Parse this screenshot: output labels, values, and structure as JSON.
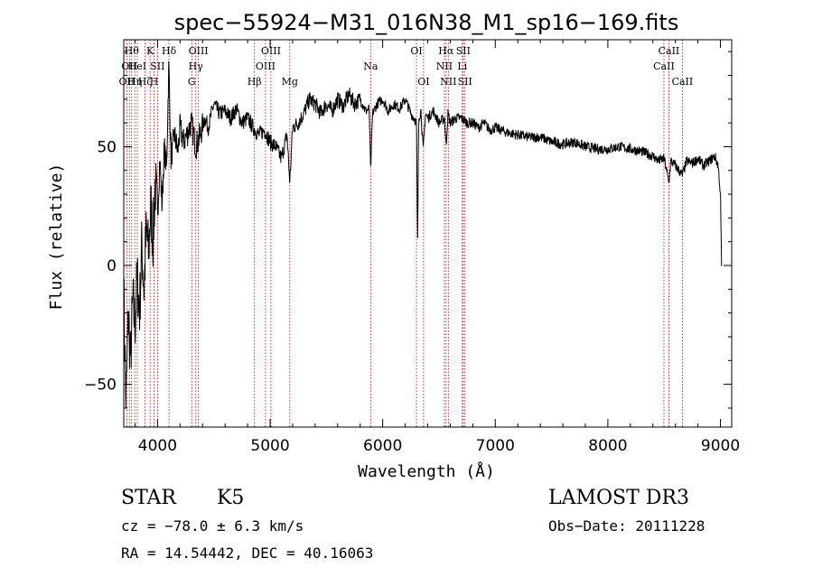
{
  "chart_data": {
    "type": "line",
    "title": "spec−55924−M31_016N38_M1_sp16−169.fits",
    "xlabel": "Wavelength (Å)",
    "ylabel": "Flux (relative)",
    "xlim": [
      3700,
      9100
    ],
    "ylim": [
      -68,
      95
    ],
    "x_ticks": [
      {
        "value": 4000,
        "label": "4000"
      },
      {
        "value": 5000,
        "label": "5000"
      },
      {
        "value": 6000,
        "label": "6000"
      },
      {
        "value": 7000,
        "label": "7000"
      },
      {
        "value": 8000,
        "label": "8000"
      },
      {
        "value": 9000,
        "label": "9000"
      }
    ],
    "y_ticks": [
      {
        "value": -50,
        "label": "−50"
      },
      {
        "value": 0,
        "label": "0"
      },
      {
        "value": 50,
        "label": "50"
      }
    ],
    "series": [
      {
        "name": "flux",
        "x": [
          3700,
          3720,
          3740,
          3760,
          3780,
          3800,
          3820,
          3840,
          3860,
          3880,
          3900,
          3920,
          3940,
          3960,
          3980,
          4000,
          4020,
          4040,
          4060,
          4080,
          4100,
          4120,
          4150,
          4180,
          4200,
          4230,
          4260,
          4300,
          4340,
          4380,
          4420,
          4450,
          4500,
          4550,
          4600,
          4650,
          4700,
          4750,
          4800,
          4850,
          4900,
          4950,
          5000,
          5050,
          5100,
          5150,
          5175,
          5200,
          5250,
          5300,
          5350,
          5400,
          5450,
          5500,
          5550,
          5600,
          5650,
          5700,
          5750,
          5800,
          5850,
          5880,
          5893,
          5910,
          5950,
          6000,
          6050,
          6100,
          6150,
          6200,
          6250,
          6280,
          6300,
          6310,
          6320,
          6340,
          6360,
          6380,
          6400,
          6450,
          6500,
          6550,
          6563,
          6580,
          6600,
          6650,
          6700,
          6750,
          6800,
          6850,
          6900,
          6950,
          7000,
          7100,
          7200,
          7300,
          7400,
          7500,
          7600,
          7700,
          7800,
          7900,
          8000,
          8100,
          8200,
          8300,
          8400,
          8450,
          8500,
          8542,
          8560,
          8600,
          8662,
          8700,
          8750,
          8800,
          8850,
          8900,
          8950,
          8980,
          9000,
          9010
        ],
        "values": [
          -10,
          -60,
          -20,
          -40,
          -15,
          -25,
          -5,
          -20,
          8,
          -10,
          15,
          5,
          25,
          10,
          35,
          20,
          45,
          25,
          50,
          40,
          85,
          45,
          55,
          48,
          58,
          52,
          55,
          60,
          50,
          55,
          62,
          58,
          68,
          64,
          65,
          62,
          66,
          60,
          62,
          58,
          55,
          57,
          52,
          50,
          45,
          55,
          35,
          58,
          60,
          64,
          70,
          68,
          64,
          68,
          65,
          70,
          67,
          72,
          68,
          70,
          65,
          66,
          40,
          64,
          68,
          70,
          65,
          68,
          66,
          70,
          64,
          62,
          60,
          10,
          62,
          65,
          48,
          64,
          62,
          65,
          60,
          62,
          50,
          64,
          60,
          62,
          62,
          60,
          60,
          58,
          60,
          57,
          58,
          56,
          55,
          54,
          54,
          52,
          51,
          52,
          50,
          49,
          49,
          50,
          49,
          48,
          46,
          44,
          45,
          35,
          44,
          42,
          38,
          44,
          43,
          45,
          42,
          44,
          46,
          42,
          30,
          0
        ]
      }
    ],
    "line_marks": [
      {
        "x": 3727,
        "label": "OII",
        "row": 2
      },
      {
        "x": 3750,
        "label": "OII",
        "row": 1
      },
      {
        "x": 3770,
        "label": "Hθ",
        "row": 0
      },
      {
        "x": 3798,
        "label": "Hη",
        "row": 2
      },
      {
        "x": 3820,
        "label": "HeI",
        "row": 1
      },
      {
        "x": 3889,
        "label": "Hζ",
        "row": 2
      },
      {
        "x": 3934,
        "label": "K",
        "row": 0
      },
      {
        "x": 3969,
        "label": "H",
        "row": 2
      },
      {
        "x": 4000,
        "label": "SII",
        "row": 1
      },
      {
        "x": 4102,
        "label": "Hδ",
        "row": 0
      },
      {
        "x": 4304,
        "label": "G",
        "row": 2
      },
      {
        "x": 4340,
        "label": "Hγ",
        "row": 1
      },
      {
        "x": 4363,
        "label": "OIII",
        "row": 0
      },
      {
        "x": 4861,
        "label": "Hβ",
        "row": 2
      },
      {
        "x": 4959,
        "label": "OIII",
        "row": 1
      },
      {
        "x": 5007,
        "label": "OIII",
        "row": 0
      },
      {
        "x": 5175,
        "label": "Mg",
        "row": 2
      },
      {
        "x": 5893,
        "label": "Na",
        "row": 1
      },
      {
        "x": 6300,
        "label": "OI",
        "row": 0
      },
      {
        "x": 6363,
        "label": "OI",
        "row": 2
      },
      {
        "x": 6548,
        "label": "NII",
        "row": 1
      },
      {
        "x": 6563,
        "label": "Hα",
        "row": 0
      },
      {
        "x": 6583,
        "label": "NII",
        "row": 2
      },
      {
        "x": 6707,
        "label": "Li",
        "row": 1
      },
      {
        "x": 6716,
        "label": "SII",
        "row": 0
      },
      {
        "x": 6731,
        "label": "SII",
        "row": 2
      },
      {
        "x": 8498,
        "label": "CaII",
        "row": 1
      },
      {
        "x": 8542,
        "label": "CaII",
        "row": 0
      },
      {
        "x": 8662,
        "label": "CaII",
        "row": 2
      }
    ],
    "colors": {
      "spectrum": "#000000",
      "line_marks": "#c00000",
      "axes": "#000000"
    }
  },
  "info": {
    "object_class": "STAR",
    "subclass": "K5",
    "survey": "LAMOST DR3",
    "redshift": "cz = −78.0 ± 6.3 km/s",
    "obs_date": "Obs−Date: 20111228",
    "coordinates": "RA =  14.54442, DEC =  40.16063"
  }
}
